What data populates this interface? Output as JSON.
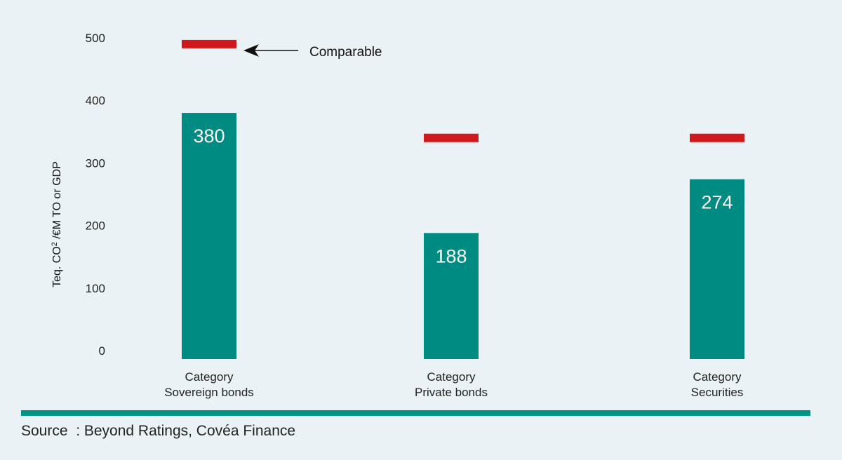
{
  "chart_data": {
    "type": "bar",
    "categories": [
      [
        "Category",
        "Sovereign bonds"
      ],
      [
        "Category",
        "Private bonds"
      ],
      [
        "Category",
        "Securities"
      ]
    ],
    "series": [
      {
        "name": "",
        "values": [
          380,
          188,
          274
        ]
      }
    ],
    "comparable": [
      490,
      340,
      340
    ],
    "yticks": [
      "0",
      "100",
      "200",
      "300",
      "400",
      "500"
    ],
    "ylim": [
      0,
      500
    ],
    "ylabel_main": "Teq. CO",
    "ylabel_sub": "2",
    "ylabel_rest": " /€M TO or GDP",
    "annotation": "Comparable",
    "colors": {
      "bar": "#008b82",
      "comparable": "#d0191c",
      "rule": "#009485",
      "text": "#222222"
    }
  },
  "source": "Source  : Beyond Ratings, Covéa Finance"
}
